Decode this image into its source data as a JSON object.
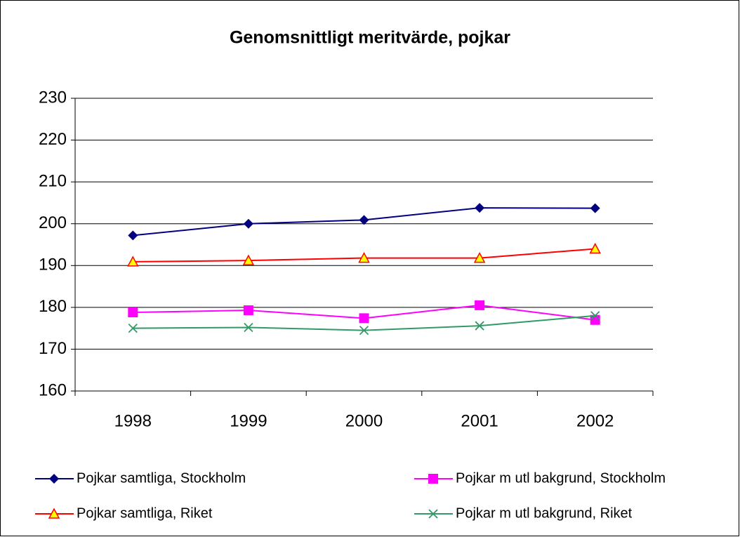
{
  "chart_data": {
    "type": "line",
    "title": "Genomsnittligt meritvärde, pojkar",
    "categories": [
      "1998",
      "1999",
      "2000",
      "2001",
      "2002"
    ],
    "series": [
      {
        "name": "Pojkar samtliga, Stockholm",
        "color": "#000080",
        "marker": "diamond",
        "values": [
          197.2,
          200,
          200.9,
          203.8,
          203.7
        ]
      },
      {
        "name": "Pojkar m utl bakgrund, Stockholm",
        "color": "#ff00ff",
        "marker": "square",
        "values": [
          178.8,
          179.3,
          177.4,
          180.5,
          177
        ]
      },
      {
        "name": "Pojkar samtliga, Riket",
        "color": "#ff0000",
        "marker": "triangle",
        "values": [
          190.9,
          191.2,
          191.8,
          191.8,
          194
        ]
      },
      {
        "name": "Pojkar m utl bakgrund, Riket",
        "color": "#339966",
        "marker": "x",
        "values": [
          175,
          175.2,
          174.5,
          175.6,
          178
        ]
      }
    ],
    "ylim": [
      160,
      230
    ],
    "yticks": [
      160,
      170,
      180,
      190,
      200,
      210,
      220,
      230
    ],
    "grid": true,
    "legend": "bottom"
  }
}
